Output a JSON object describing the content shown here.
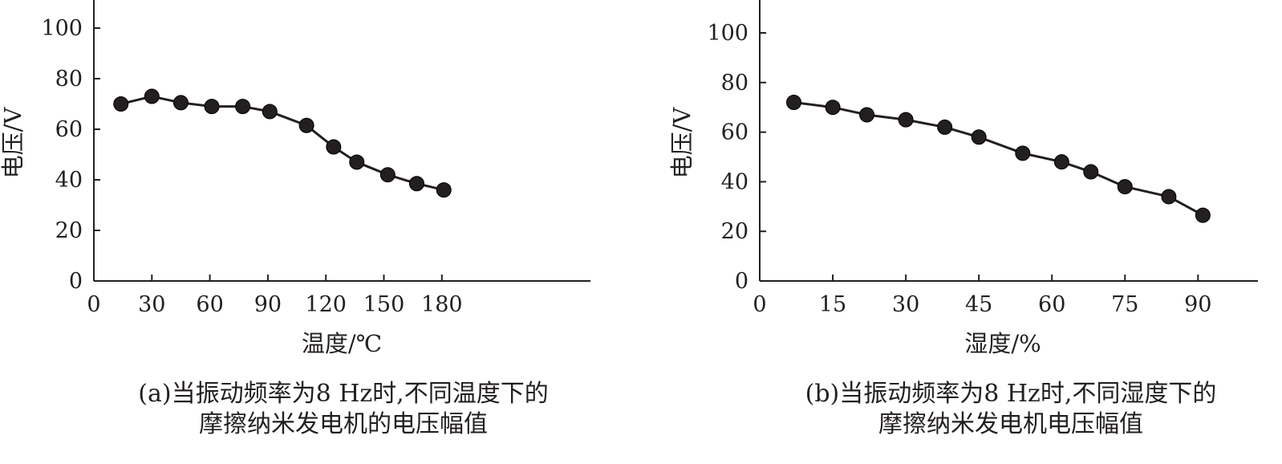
{
  "chart_data": [
    {
      "type": "line",
      "caption_line1": "(a)当振动频率为8 Hz时,不同温度下的",
      "caption_line2": "摩擦纳米发电机的电压幅值",
      "xlabel": "温度/℃",
      "ylabel": "电压/V",
      "xlim": [
        0,
        205
      ],
      "ylim": [
        0,
        110
      ],
      "xticks": [
        0,
        30,
        60,
        90,
        120,
        150,
        180
      ],
      "yticks": [
        0,
        20,
        40,
        60,
        80,
        100
      ],
      "x": [
        14,
        30,
        45,
        61,
        77,
        91,
        110,
        124,
        136,
        152,
        167,
        181
      ],
      "y": [
        70,
        73,
        70.5,
        69,
        69,
        67,
        61.5,
        53,
        47,
        42,
        38.5,
        36
      ],
      "marker": "filled-circle",
      "line_color": "#231f20",
      "grid": false
    },
    {
      "type": "line",
      "caption_line1": "(b)当振动频率为8 Hz时,不同湿度下的",
      "caption_line2": "摩擦纳米发电机电压幅值",
      "xlabel": "湿度/%",
      "ylabel": "电压/V",
      "xlim": [
        0,
        102
      ],
      "ylim": [
        0,
        112
      ],
      "xticks": [
        0,
        15,
        30,
        45,
        60,
        75,
        90
      ],
      "yticks": [
        0,
        20,
        40,
        60,
        80,
        100
      ],
      "x": [
        7,
        15,
        22,
        30,
        38,
        45,
        54,
        62,
        68,
        75,
        84,
        91
      ],
      "y": [
        72,
        70,
        67,
        65,
        62,
        58,
        51.5,
        48,
        44,
        38,
        34,
        26.5
      ],
      "marker": "filled-circle",
      "line_color": "#231f20",
      "grid": false
    }
  ]
}
